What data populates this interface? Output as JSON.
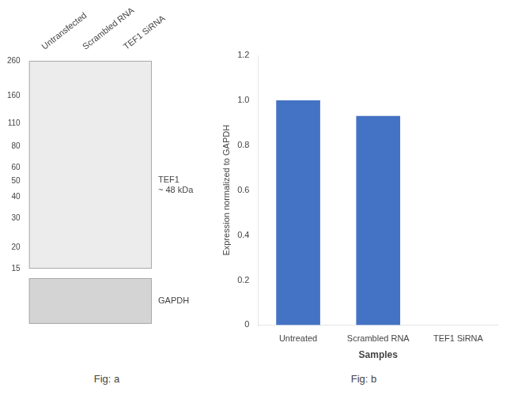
{
  "chart_data": [
    {
      "type": "blot",
      "categories": [
        "Untransfected",
        "Scrambled RNA",
        "TEF1 SiRNA"
      ],
      "log": "y",
      "ylim": [
        15,
        260
      ],
      "yticks": [
        15,
        20,
        30,
        40,
        50,
        60,
        80,
        110,
        160,
        260
      ],
      "annotations": [
        "TEF1\n~ 48 kDa",
        "GAPDH",
        "Fig: a"
      ]
    },
    {
      "type": "bar",
      "categories": [
        "Untreated",
        "Scrambled RNA",
        "TEF1 SiRNA"
      ],
      "values": [
        1.0,
        0.93,
        0.0
      ],
      "color": "#4472c4",
      "xlabel": "Samples",
      "ylabel": "Expression normalized to GAPDH",
      "ylim": [
        0,
        1.2
      ],
      "yticks": [
        0,
        0.2,
        0.4,
        0.6,
        0.8,
        {
          "value": 1.0,
          "label": "1.0"
        },
        1.2
      ],
      "grid": false,
      "annotations": [
        "Fig: b"
      ]
    }
  ]
}
